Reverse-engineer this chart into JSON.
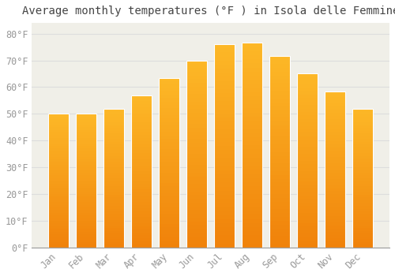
{
  "title": "Average monthly temperatures (°F ) in Isola delle Femmine",
  "months": [
    "Jan",
    "Feb",
    "Mar",
    "Apr",
    "May",
    "Jun",
    "Jul",
    "Aug",
    "Sep",
    "Oct",
    "Nov",
    "Dec"
  ],
  "values": [
    50.0,
    50.0,
    52.0,
    57.0,
    63.5,
    70.0,
    76.0,
    76.5,
    71.5,
    65.0,
    58.5,
    52.0
  ],
  "bar_color_top": "#FDB827",
  "bar_color_bottom": "#F0820A",
  "bar_edge_color": "#DDDDDD",
  "background_color": "#F0EFE8",
  "plot_bg_color": "#F0EFE8",
  "title_bg_color": "#FFFFFF",
  "grid_color": "#DDDDDD",
  "yticks": [
    0,
    10,
    20,
    30,
    40,
    50,
    60,
    70,
    80
  ],
  "ylim": [
    0,
    84
  ],
  "title_fontsize": 10,
  "tick_fontsize": 8.5,
  "tick_color": "#999999",
  "title_color": "#444444",
  "bar_width": 0.75
}
